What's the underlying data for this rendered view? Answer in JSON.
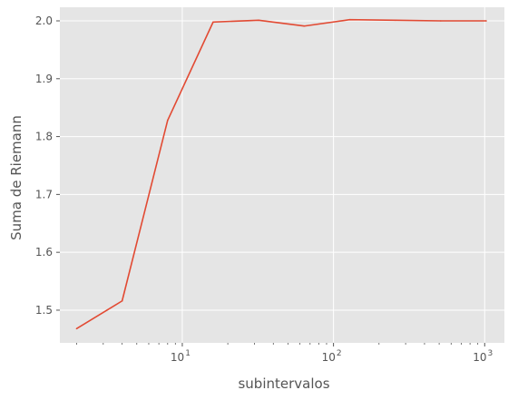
{
  "chart_data": {
    "type": "line",
    "xlabel": "subintervalos",
    "ylabel": "Suma de Riemann",
    "xscale": "log",
    "grid": true,
    "colors": {
      "background": "#e5e5e5",
      "grid": "#ffffff",
      "line": "#e24a33",
      "tick": "#555555"
    },
    "xlim": [
      1.55,
      1350
    ],
    "ylim": [
      1.4435,
      2.0235
    ],
    "xticks": [
      {
        "value": 10,
        "base": "10",
        "exp": "1"
      },
      {
        "value": 100,
        "base": "10",
        "exp": "2"
      },
      {
        "value": 1000,
        "base": "10",
        "exp": "3"
      }
    ],
    "yticks": [
      {
        "value": 1.5,
        "label": "1.5"
      },
      {
        "value": 1.6,
        "label": "1.6"
      },
      {
        "value": 1.7,
        "label": "1.7"
      },
      {
        "value": 1.8,
        "label": "1.8"
      },
      {
        "value": 1.9,
        "label": "1.9"
      },
      {
        "value": 2.0,
        "label": "2.0"
      }
    ],
    "series": [
      {
        "x": [
          2,
          4,
          8,
          16,
          32,
          64,
          128,
          256,
          512,
          1024
        ],
        "y": [
          1.468,
          1.516,
          1.828,
          1.998,
          2.001,
          1.991,
          2.002,
          2.001,
          2.0,
          2.0
        ]
      }
    ]
  }
}
